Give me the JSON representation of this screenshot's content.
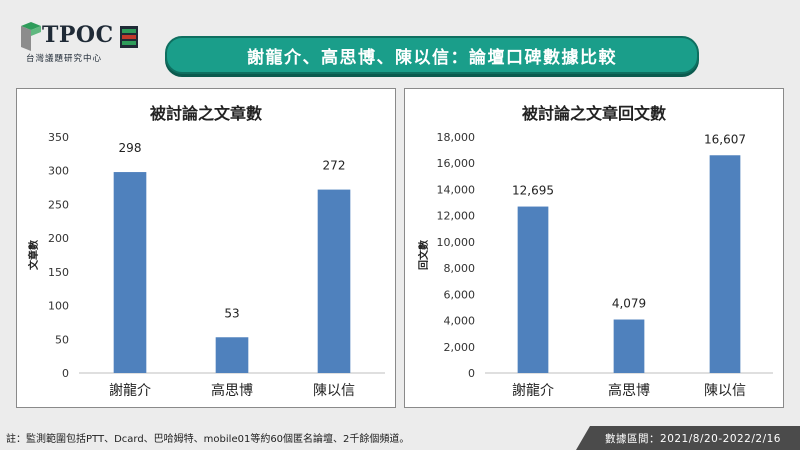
{
  "logo": {
    "text": "TPOC",
    "subtitle": "台灣議題研究中心",
    "colors": {
      "green": "#2e9c5a",
      "grey": "#8c8c8c",
      "red": "#c0392b",
      "dark": "#1f2a36"
    }
  },
  "header": {
    "title": "謝龍介、高思博、陳以信：論壇口碑數據比較"
  },
  "chart_data": [
    {
      "type": "bar",
      "title": "被討論之文章數",
      "xlabel": "",
      "ylabel": "文章數",
      "categories": [
        "謝龍介",
        "高思博",
        "陳以信"
      ],
      "values": [
        298,
        53,
        272
      ],
      "value_labels": [
        "298",
        "53",
        "272"
      ],
      "ylim": [
        0,
        350
      ],
      "yticks": [
        0,
        50,
        100,
        150,
        200,
        250,
        300,
        350
      ],
      "ytick_labels": [
        "0",
        "50",
        "100",
        "150",
        "200",
        "250",
        "300",
        "350"
      ],
      "grid": false,
      "color": "#4f81bd"
    },
    {
      "type": "bar",
      "title": "被討論之文章回文數",
      "xlabel": "",
      "ylabel": "回文數",
      "categories": [
        "謝龍介",
        "高思博",
        "陳以信"
      ],
      "values": [
        12695,
        4079,
        16607
      ],
      "value_labels": [
        "12,695",
        "4,079",
        "16,607"
      ],
      "ylim": [
        0,
        18000
      ],
      "yticks": [
        0,
        2000,
        4000,
        6000,
        8000,
        10000,
        12000,
        14000,
        16000,
        18000
      ],
      "ytick_labels": [
        "0",
        "2,000",
        "4,000",
        "6,000",
        "8,000",
        "10,000",
        "12,000",
        "14,000",
        "16,000",
        "18,000"
      ],
      "grid": false,
      "color": "#4f81bd"
    }
  ],
  "footer": {
    "note": "註：監測範圍包括PTT、Dcard、巴哈姆特、mobile01等約60個匿名論壇、2千餘個頻道。",
    "date_range": "數據區間：2021/8/20-2022/2/16"
  }
}
